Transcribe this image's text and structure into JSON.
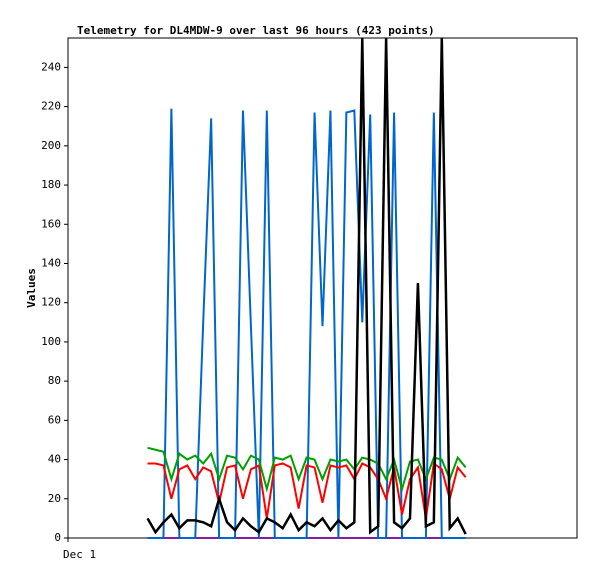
{
  "chart_data": {
    "type": "line",
    "title": "Telemetry for DL4MDW-9 over last 96 hours (423 points)",
    "ylabel": "Values",
    "x": [
      15,
      16.5,
      18,
      19.5,
      21,
      22.5,
      24,
      25.5,
      27,
      28.5,
      30,
      31.5,
      33,
      34.5,
      36,
      37.5,
      39,
      40.5,
      42,
      43.5,
      45,
      46.5,
      48,
      49.5,
      51,
      52.5,
      54,
      55.5,
      57,
      58.5,
      60,
      61.5,
      63,
      64.5,
      66,
      67.5,
      69,
      70.5,
      72,
      73.5,
      75
    ],
    "series": [
      {
        "color": "#8020a0",
        "values": [
          0,
          0,
          0,
          0,
          0,
          0,
          0,
          0,
          0,
          0,
          0,
          0,
          0,
          0,
          0,
          0,
          0,
          0,
          0,
          0,
          0,
          0,
          0,
          0,
          0,
          0,
          0,
          0,
          0,
          0,
          0,
          0,
          0,
          0,
          0,
          0,
          0,
          0,
          0,
          0,
          0
        ]
      },
      {
        "color": "#0066cc",
        "values": [
          0,
          0,
          0,
          219,
          0,
          0,
          0,
          110,
          214,
          0,
          0,
          0,
          218,
          108,
          0,
          218,
          0,
          0,
          0,
          0,
          0,
          217,
          108,
          218,
          0,
          217,
          218,
          110,
          216,
          0,
          0,
          217,
          0,
          0,
          0,
          0,
          217,
          0,
          0,
          0,
          0
        ]
      },
      {
        "color": "#ff0000",
        "values": [
          38,
          38,
          37,
          20,
          35,
          37,
          30,
          36,
          34,
          18,
          36,
          37,
          20,
          35,
          37,
          10,
          37,
          38,
          36,
          15,
          37,
          36,
          18,
          37,
          36,
          37,
          30,
          38,
          36,
          30,
          20,
          36,
          12,
          30,
          36,
          10,
          38,
          35,
          20,
          36,
          31
        ]
      },
      {
        "color": "#00a000",
        "values": [
          46,
          45,
          44,
          30,
          43,
          40,
          42,
          38,
          43,
          30,
          42,
          41,
          35,
          42,
          40,
          25,
          41,
          40,
          42,
          30,
          41,
          40,
          30,
          40,
          39,
          40,
          35,
          41,
          40,
          38,
          30,
          40,
          25,
          39,
          40,
          30,
          41,
          40,
          30,
          41,
          36
        ]
      },
      {
        "color": "#000000",
        "values": [
          10,
          3,
          8,
          12,
          5,
          9,
          9,
          8,
          6,
          20,
          8,
          4,
          10,
          6,
          3,
          10,
          8,
          5,
          12,
          4,
          8,
          6,
          10,
          4,
          9,
          5,
          8,
          255,
          3,
          6,
          255,
          8,
          5,
          10,
          130,
          6,
          8,
          255,
          5,
          10,
          2
        ]
      }
    ],
    "xlim": [
      0,
      96
    ],
    "xticks": [
      {
        "value": 0,
        "label": "Dec 1"
      }
    ],
    "ylim": [
      0,
      255
    ],
    "yticks": [
      0,
      20,
      40,
      60,
      80,
      100,
      120,
      140,
      160,
      180,
      200,
      220,
      240
    ]
  }
}
